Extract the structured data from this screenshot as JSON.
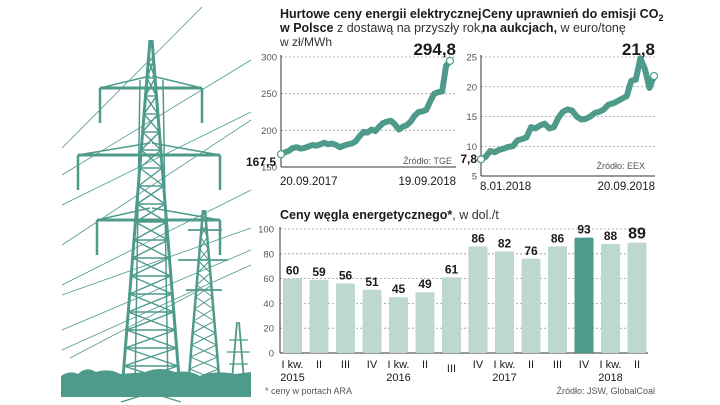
{
  "colors": {
    "teal": "#4e9a8b",
    "bar_light": "#bcd8d1",
    "bar_highlight": "#4e9a8b",
    "grid": "#9a9a9a",
    "text": "#1a1a1a",
    "muted": "#555555"
  },
  "illustration": {
    "name": "power-transmission-towers"
  },
  "chart_data": [
    {
      "type": "line",
      "id": "electricity",
      "title_bold": "Hurtowe ceny energii elektrycznej",
      "title_line2_bold": "w Polsce",
      "title_line2_rest": " z dostawą na przyszły rok,",
      "title_line3": "w zł/MWh",
      "ylim": [
        150,
        300
      ],
      "yticks": [
        "300",
        "250",
        "200",
        "150"
      ],
      "ytick_values": [
        300,
        250,
        200,
        150
      ],
      "x_start_label": "20.09.2017",
      "x_end_label": "19.09.2018",
      "start_value": 167.5,
      "start_label": "167,5",
      "end_value": 294.8,
      "end_label": "294,8",
      "source": "Źródło: TGE",
      "grid": true,
      "series": [
        {
          "name": "price",
          "values": [
            167.5,
            170,
            172,
            176,
            177,
            175,
            176,
            178,
            180,
            179,
            181,
            183,
            181,
            182,
            180,
            177,
            179,
            181,
            182,
            185,
            192,
            198,
            197,
            201,
            199,
            205,
            210,
            212,
            213,
            208,
            201,
            205,
            207,
            212,
            220,
            225,
            226,
            228,
            240,
            250,
            252,
            253,
            288,
            294.8
          ]
        }
      ]
    },
    {
      "type": "line",
      "id": "co2",
      "title_bold": "Ceny uprawnień do emisji CO",
      "title_sub": "2",
      "title_line2_bold": "na aukcjach,",
      "title_line2_rest": " w euro/tonę",
      "ylim": [
        5,
        25
      ],
      "yticks": [
        "25",
        "20",
        "15",
        "10",
        "5"
      ],
      "ytick_values": [
        25,
        20,
        15,
        10,
        5
      ],
      "x_start_label": "8.01.2018",
      "x_end_label": "20.09.2018",
      "start_value": 7.8,
      "start_label": "7,8",
      "end_value": 21.8,
      "end_label": "21,8",
      "source": "Źródło: EEX",
      "grid": true,
      "series": [
        {
          "name": "price",
          "values": [
            7.8,
            8.2,
            9.2,
            9.0,
            9.4,
            9.6,
            9.9,
            10.0,
            11.0,
            11.2,
            11.5,
            13.2,
            13.0,
            13.5,
            13.8,
            13.0,
            13.2,
            14.8,
            15.8,
            16.2,
            16.0,
            15.0,
            14.5,
            14.6,
            15.0,
            15.6,
            15.8,
            16.2,
            17.0,
            17.2,
            17.6,
            18.0,
            18.4,
            21.0,
            21.2,
            24.8,
            23.0,
            19.8,
            21.8
          ]
        }
      ]
    },
    {
      "type": "bar",
      "id": "coal",
      "title_bold": "Ceny węgla energetycznego*",
      "title_rest": ", w dol./t",
      "ylim": [
        0,
        100
      ],
      "yticks": [
        "100",
        "80",
        "60",
        "40",
        "20",
        "0"
      ],
      "ytick_values": [
        100,
        80,
        60,
        40,
        20,
        0
      ],
      "categories": [
        "I kw.",
        "II",
        "III",
        "IV",
        "I kw.",
        "II",
        "III",
        "IV",
        "I kw.",
        "II",
        "III",
        "IV",
        "I kw.",
        "II"
      ],
      "years": [
        {
          "label": "2015",
          "index": 0
        },
        {
          "label": "2016",
          "index": 4
        },
        {
          "label": "2017",
          "index": 8
        },
        {
          "label": "2018",
          "index": 12
        }
      ],
      "values": [
        60,
        59,
        56,
        51,
        45,
        49,
        61,
        86,
        82,
        76,
        86,
        93,
        88,
        89
      ],
      "value_labels": [
        "60",
        "59",
        "56",
        "51",
        "45",
        "49",
        "61",
        "86",
        "82",
        "76",
        "86",
        "93",
        "88",
        "89"
      ],
      "highlight_index": 11,
      "footnote": "* ceny w portach ARA",
      "source": "Źródło: JSW, GlobalCoal",
      "grid": true
    }
  ]
}
